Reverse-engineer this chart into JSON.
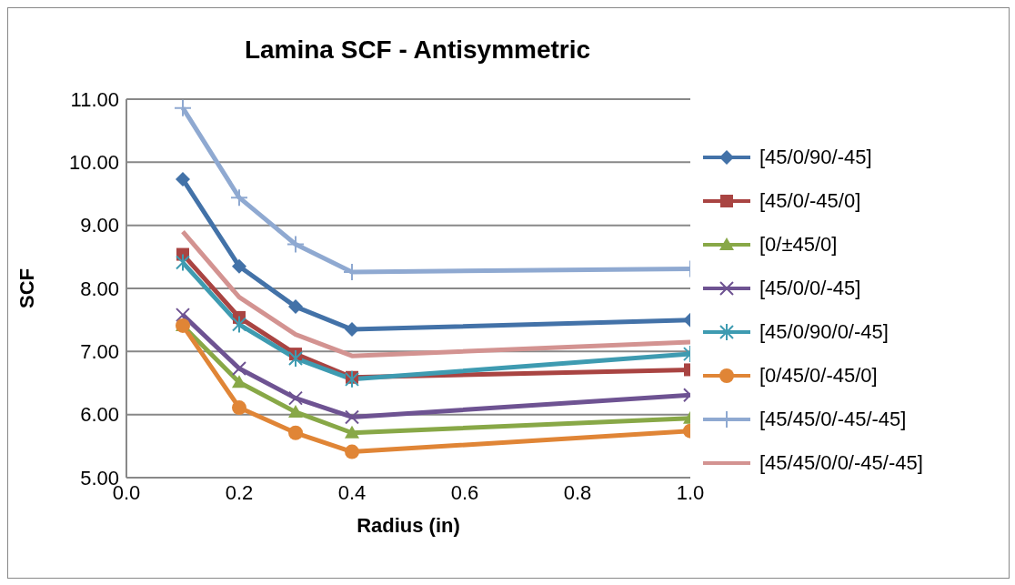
{
  "chart_data": {
    "type": "line",
    "title": "Lamina SCF - Antisymmetric",
    "xlabel": "Radius (in)",
    "ylabel": "SCF",
    "x": [
      0.1,
      0.2,
      0.3,
      0.4,
      1.0
    ],
    "series": [
      {
        "name": "[45/0/90/-45]",
        "color": "#4372a8",
        "marker": "diamond",
        "values": [
          9.73,
          8.35,
          7.71,
          7.35,
          7.5
        ]
      },
      {
        "name": "[45/0/-45/0]",
        "color": "#a94442",
        "marker": "square",
        "values": [
          8.54,
          7.54,
          6.96,
          6.59,
          6.71
        ]
      },
      {
        "name": "[0/±45/0]",
        "color": "#88a847",
        "marker": "triangle",
        "values": [
          7.41,
          6.51,
          6.04,
          5.71,
          5.94
        ]
      },
      {
        "name": "[45/0/0/-45]",
        "color": "#6e5392",
        "marker": "x",
        "values": [
          7.58,
          6.73,
          6.26,
          5.96,
          6.31
        ]
      },
      {
        "name": "[45/0/90/0/-45]",
        "color": "#3e9bb1",
        "marker": "cross",
        "values": [
          8.41,
          7.43,
          6.89,
          6.56,
          6.96
        ]
      },
      {
        "name": "[0/45/0/-45/0]",
        "color": "#e08536",
        "marker": "circle",
        "values": [
          7.41,
          6.11,
          5.71,
          5.41,
          5.74
        ]
      },
      {
        "name": "[45/45/0/-45/-45]",
        "color": "#8fa9d1",
        "marker": "plus",
        "values": [
          10.86,
          9.44,
          8.7,
          8.26,
          8.31
        ]
      },
      {
        "name": "[45/45/0/0/-45/-45]",
        "color": "#d39391",
        "marker": "none",
        "values": [
          8.9,
          7.86,
          7.27,
          6.93,
          7.15
        ]
      }
    ],
    "xlim": [
      0,
      1.0
    ],
    "xticks": [
      {
        "value": 0,
        "label": "0.0"
      },
      0.2,
      0.4,
      0.6,
      0.8,
      {
        "value": 1.0,
        "label": "1.0"
      }
    ],
    "ylim": [
      5,
      11
    ],
    "yticks": [
      {
        "value": 5,
        "label": "5.00"
      },
      {
        "value": 6,
        "label": "6.00"
      },
      {
        "value": 7,
        "label": "7.00"
      },
      {
        "value": 8,
        "label": "8.00"
      },
      {
        "value": 9,
        "label": "9.00"
      },
      {
        "value": 10,
        "label": "10.00"
      },
      {
        "value": 11,
        "label": "11.00"
      }
    ],
    "grid": "y",
    "legend": "right"
  }
}
